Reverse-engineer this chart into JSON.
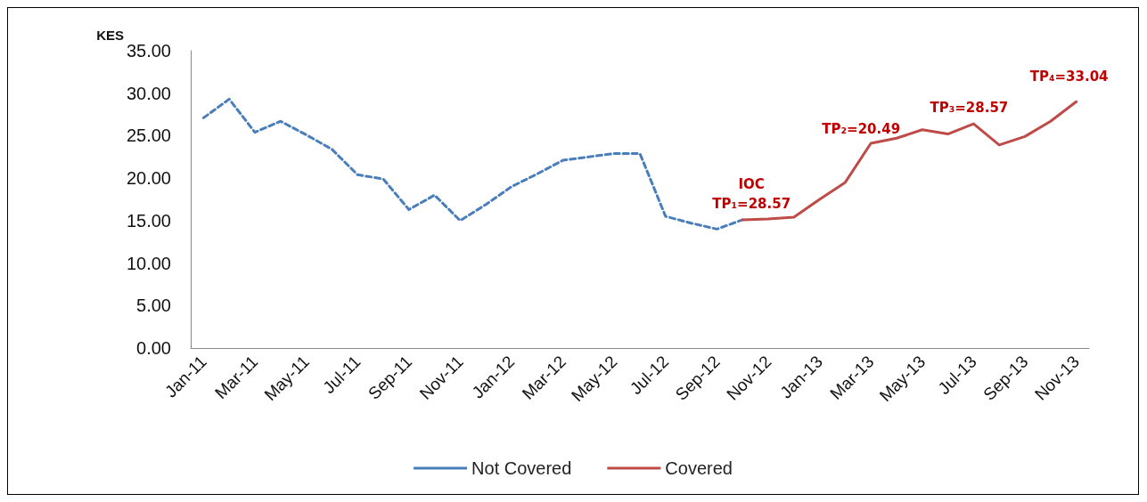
{
  "chart_data": {
    "type": "line",
    "ylabel": "KES",
    "categories": [
      "Jan-11",
      null,
      "Mar-11",
      null,
      "May-11",
      null,
      "Jul-11",
      null,
      "Sep-11",
      null,
      "Nov-11",
      null,
      "Jan-12",
      null,
      "Mar-12",
      null,
      "May-12",
      null,
      "Jul-12",
      null,
      "Sep-12",
      null,
      "Nov-12",
      null,
      "Jan-13",
      null,
      "Mar-13",
      null,
      "May-13",
      null,
      "Jul-13",
      null,
      "Sep-13",
      null,
      "Nov-13"
    ],
    "series": [
      {
        "name": "Not Covered",
        "color": "#4a7ebb",
        "line_style": "dashed",
        "values": [
          27.1,
          29.3,
          25.4,
          26.7,
          25.1,
          23.4,
          20.4,
          19.9,
          16.3,
          18.0,
          15.0,
          16.9,
          19.0,
          20.5,
          22.1,
          22.5,
          22.9,
          22.9,
          15.5,
          14.7,
          14.0,
          15.1,
          null,
          null,
          null,
          null,
          null,
          null,
          null,
          null,
          null,
          null,
          null,
          null,
          null
        ]
      },
      {
        "name": "Covered",
        "color": "#be4b48",
        "line_style": "solid",
        "values": [
          null,
          null,
          null,
          null,
          null,
          null,
          null,
          null,
          null,
          null,
          null,
          null,
          null,
          null,
          null,
          null,
          null,
          null,
          null,
          null,
          null,
          15.1,
          15.2,
          15.4,
          17.5,
          19.5,
          24.1,
          24.7,
          25.7,
          25.2,
          26.4,
          23.9,
          24.9,
          26.7,
          29.0
        ]
      }
    ],
    "ylim": [
      0,
      35
    ],
    "yticks": [
      {
        "value": 0,
        "label": "0.00"
      },
      {
        "value": 5,
        "label": "5.00"
      },
      {
        "value": 10,
        "label": "10.00"
      },
      {
        "value": 15,
        "label": "15.00"
      },
      {
        "value": 20,
        "label": "20.00"
      },
      {
        "value": 25,
        "label": "25.00"
      },
      {
        "value": 30,
        "label": "30.00"
      },
      {
        "value": 35,
        "label": "35.00"
      }
    ],
    "annotations": [
      {
        "text": "IOC\nTP₁=28.57",
        "y": 15.1
      },
      {
        "text": "TP₂=20.49",
        "x": "Mar-13",
        "y": 24.1
      },
      {
        "text": "TP₃=28.57",
        "x": "Jul-13",
        "y": 26.4
      },
      {
        "text": "TP₄=33.04",
        "x": "Nov-13",
        "y": 29.0
      }
    ],
    "grid": false,
    "legend": "bottom",
    "marker": "none"
  }
}
